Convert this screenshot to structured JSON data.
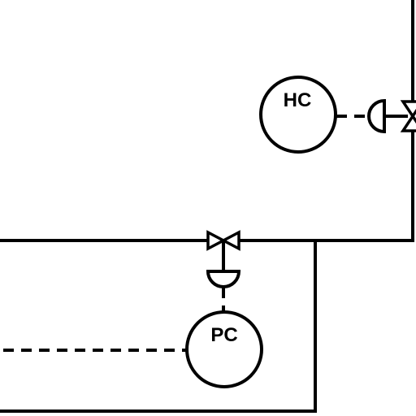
{
  "instruments": [
    {
      "id": "hc",
      "tag": "HC"
    },
    {
      "id": "pc",
      "tag": "PC"
    }
  ]
}
